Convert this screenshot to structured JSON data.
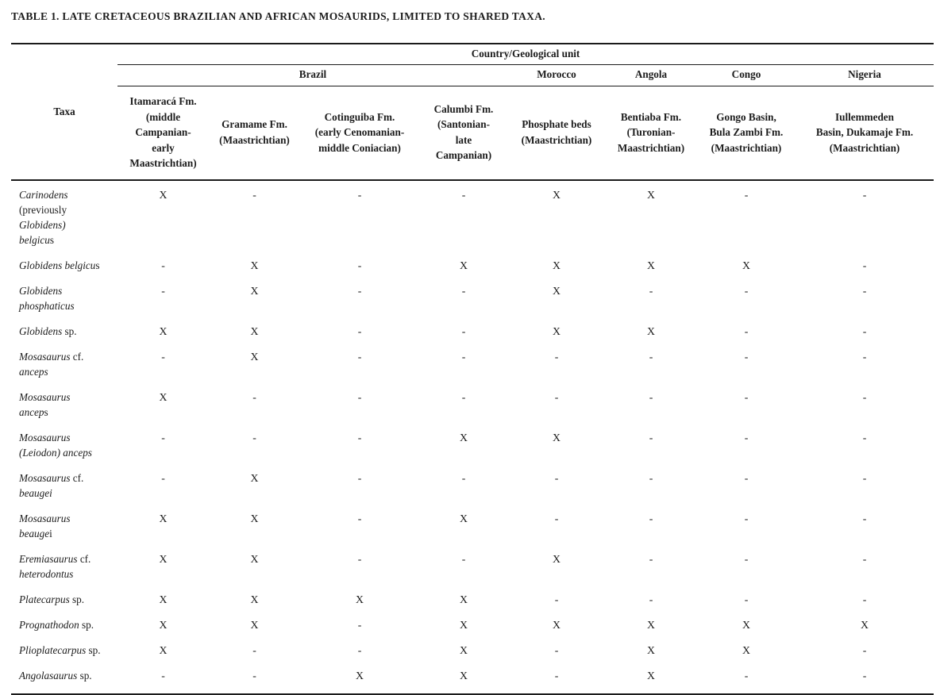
{
  "title": "TABLE 1. LATE CRETACEOUS BRAZILIAN AND AFRICAN MOSAURIDS, LIMITED TO SHARED TAXA.",
  "colors": {
    "background": "#ffffff",
    "text": "#1c1c1c",
    "rule": "#1b1b1b"
  },
  "table": {
    "group_header": "Country/Geological unit",
    "taxa_header": "Taxa",
    "countries": [
      {
        "label": "Brazil"
      },
      {
        "label": "Morocco"
      },
      {
        "label": "Angola"
      },
      {
        "label": "Congo"
      },
      {
        "label": "Nigeria"
      }
    ],
    "formations": [
      "Itamaracá Fm.\n(middle\nCampanian-\nearly\nMaastrichtian)",
      "Gramame Fm.\n(Maastrichtian)",
      "Cotinguiba Fm.\n(early Cenomanian-\nmiddle Coniacian)",
      "Calumbi Fm.\n(Santonian-\nlate\nCampanian)",
      "Phosphate beds\n(Maastrichtian)",
      "Bentiaba Fm.\n(Turonian-\nMaastrichtian)",
      "Gongo Basin,\nBula Zambi Fm.\n(Maastrichtian)",
      "Iullemmeden\nBasin, Dukamaje Fm.\n(Maastrichtian)"
    ],
    "rows": [
      {
        "taxon": [
          {
            "t": "Carinodens\n",
            "i": true
          },
          {
            "t": "(previously\n",
            "i": false
          },
          {
            "t": "Globidens)\n",
            "i": true
          },
          {
            "t": "belgicu",
            "i": true
          },
          {
            "t": "s",
            "i": false
          }
        ],
        "values": [
          "X",
          "-",
          "-",
          "-",
          "X",
          "X",
          "-",
          "-"
        ]
      },
      {
        "taxon": [
          {
            "t": "Globidens belgicu",
            "i": true
          },
          {
            "t": "s",
            "i": false
          }
        ],
        "values": [
          "-",
          "X",
          "-",
          "X",
          "X",
          "X",
          "X",
          "-"
        ]
      },
      {
        "taxon": [
          {
            "t": "Globidens\nphosphaticus",
            "i": true
          }
        ],
        "values": [
          "-",
          "X",
          "-",
          "-",
          "X",
          "-",
          "-",
          "-"
        ]
      },
      {
        "taxon": [
          {
            "t": "Globidens",
            "i": true
          },
          {
            "t": " sp.",
            "i": false
          }
        ],
        "values": [
          "X",
          "X",
          "-",
          "-",
          "X",
          "X",
          "-",
          "-"
        ]
      },
      {
        "taxon": [
          {
            "t": "Mosasaurus",
            "i": true
          },
          {
            "t": " cf.\n",
            "i": false
          },
          {
            "t": "anceps",
            "i": true
          }
        ],
        "values": [
          "-",
          "X",
          "-",
          "-",
          "-",
          "-",
          "-",
          "-"
        ]
      },
      {
        "taxon": [
          {
            "t": "Mosasaurus\nancep",
            "i": true
          },
          {
            "t": "s",
            "i": false
          }
        ],
        "values": [
          "X",
          "-",
          "-",
          "-",
          "-",
          "-",
          "-",
          "-"
        ]
      },
      {
        "taxon": [
          {
            "t": "Mosasaurus\n(Leiodon) anceps",
            "i": true
          }
        ],
        "values": [
          "-",
          "-",
          "-",
          "X",
          "X",
          "-",
          "-",
          "-"
        ]
      },
      {
        "taxon": [
          {
            "t": "Mosasaurus",
            "i": true
          },
          {
            "t": " cf.\n",
            "i": false
          },
          {
            "t": "beaugei",
            "i": true
          }
        ],
        "values": [
          "-",
          "X",
          "-",
          "-",
          "-",
          "-",
          "-",
          "-"
        ]
      },
      {
        "taxon": [
          {
            "t": "Mosasaurus\nbeauge",
            "i": true
          },
          {
            "t": "i",
            "i": false
          }
        ],
        "values": [
          "X",
          "X",
          "-",
          "X",
          "-",
          "-",
          "-",
          "-"
        ]
      },
      {
        "taxon": [
          {
            "t": "Eremiasaurus",
            "i": true
          },
          {
            "t": " cf.\n",
            "i": false
          },
          {
            "t": "heterodontus",
            "i": true
          }
        ],
        "values": [
          "X",
          "X",
          "-",
          "-",
          "X",
          "-",
          "-",
          "-"
        ]
      },
      {
        "taxon": [
          {
            "t": "Platecarpus",
            "i": true
          },
          {
            "t": " sp.",
            "i": false
          }
        ],
        "values": [
          "X",
          "X",
          "X",
          "X",
          "-",
          "-",
          "-",
          "-"
        ]
      },
      {
        "taxon": [
          {
            "t": "Prognathodon",
            "i": true
          },
          {
            "t": " sp.",
            "i": false
          }
        ],
        "values": [
          "X",
          "X",
          "-",
          "X",
          "X",
          "X",
          "X",
          "X"
        ]
      },
      {
        "taxon": [
          {
            "t": "Plioplatecarpus",
            "i": true
          },
          {
            "t": " sp.",
            "i": false
          }
        ],
        "values": [
          "X",
          "-",
          "-",
          "X",
          "-",
          "X",
          "X",
          "-"
        ]
      },
      {
        "taxon": [
          {
            "t": "Angolasaurus",
            "i": true
          },
          {
            "t": " sp.",
            "i": false
          }
        ],
        "values": [
          "-",
          "-",
          "X",
          "X",
          "-",
          "X",
          "-",
          "-"
        ]
      }
    ]
  }
}
